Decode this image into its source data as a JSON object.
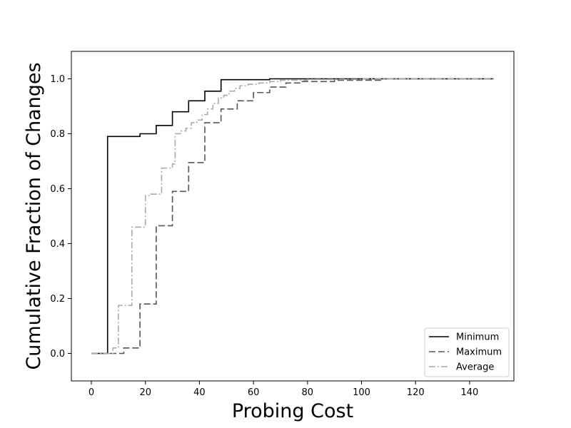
{
  "chart_data": {
    "type": "line",
    "step": true,
    "xlabel": "Probing Cost",
    "ylabel": "Cumulative Fraction of Changes",
    "xlim": [
      -7.4,
      156.4
    ],
    "ylim": [
      -0.1,
      1.1
    ],
    "xticks": [
      0,
      20,
      40,
      60,
      80,
      100,
      120,
      140
    ],
    "yticks": [
      0.0,
      0.2,
      0.4,
      0.6,
      0.8,
      1.0
    ],
    "xtick_labels": [
      "0",
      "20",
      "40",
      "60",
      "80",
      "100",
      "120",
      "140"
    ],
    "ytick_labels": [
      "0.0",
      "0.2",
      "0.4",
      "0.6",
      "0.8",
      "1.0"
    ],
    "legend_position": "lower-right",
    "series": [
      {
        "name": "Minimum",
        "color": "#000000",
        "linestyle": "solid",
        "x": [
          0,
          6,
          18,
          24,
          30,
          36,
          42,
          48,
          66,
          86,
          149
        ],
        "y": [
          0.0,
          0.79,
          0.8,
          0.83,
          0.88,
          0.92,
          0.955,
          0.997,
          1.0,
          1.0,
          1.0
        ]
      },
      {
        "name": "Maximum",
        "color": "#555555",
        "linestyle": "dashed",
        "x": [
          0,
          12,
          18,
          24,
          30,
          36,
          42,
          48,
          54,
          60,
          66,
          72,
          78,
          90,
          108,
          149
        ],
        "y": [
          0.0,
          0.02,
          0.18,
          0.465,
          0.59,
          0.695,
          0.84,
          0.89,
          0.92,
          0.95,
          0.97,
          0.985,
          0.99,
          0.995,
          1.0,
          1.0
        ]
      },
      {
        "name": "Average",
        "color": "#aaaaaa",
        "linestyle": "dashdot",
        "x": [
          0,
          8,
          10,
          15,
          20,
          22,
          26,
          30,
          31,
          33,
          35,
          37,
          39,
          41,
          43,
          45,
          47,
          49,
          51,
          53,
          55,
          58,
          62,
          66,
          70,
          80,
          100,
          149
        ],
        "y": [
          0.0,
          0.02,
          0.175,
          0.46,
          0.575,
          0.58,
          0.675,
          0.69,
          0.8,
          0.81,
          0.82,
          0.84,
          0.85,
          0.87,
          0.89,
          0.91,
          0.93,
          0.94,
          0.955,
          0.965,
          0.975,
          0.98,
          0.985,
          0.99,
          0.995,
          0.998,
          1.0,
          1.0
        ]
      }
    ]
  }
}
